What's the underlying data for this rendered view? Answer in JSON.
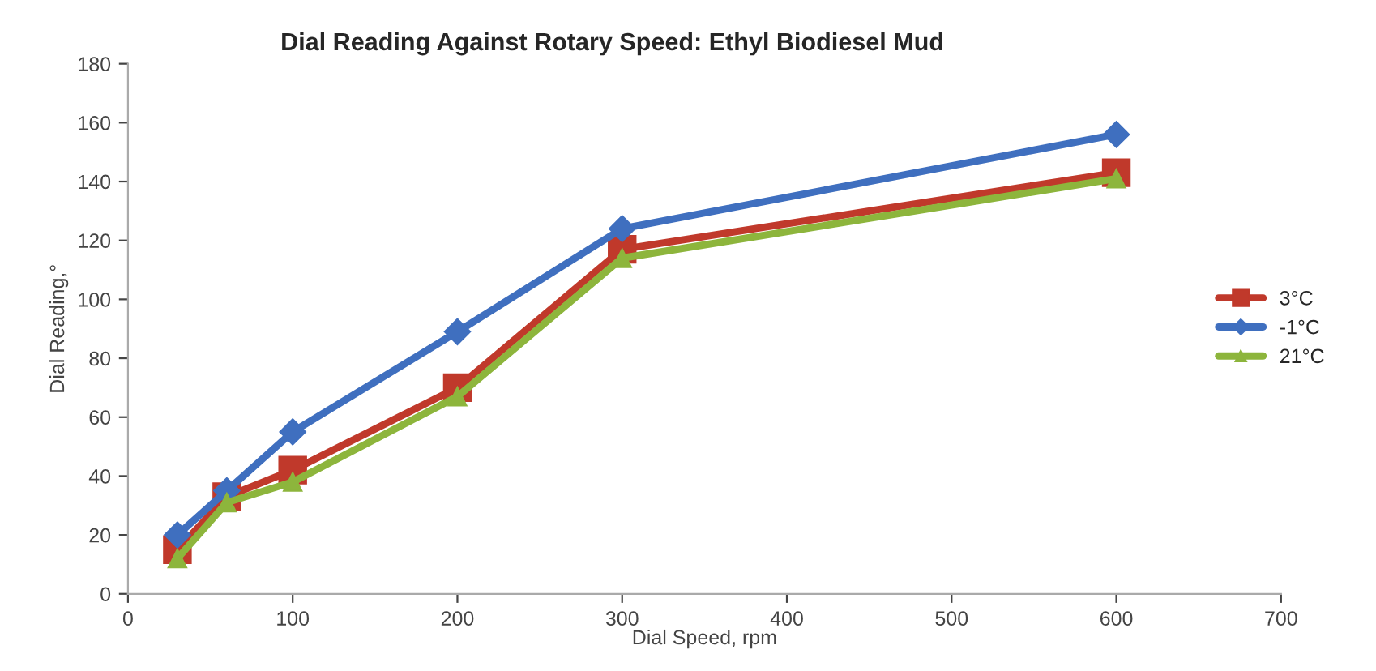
{
  "chart_data": {
    "type": "line",
    "title": "Dial Reading Against Rotary Speed: Ethyl Biodiesel Mud",
    "xlabel": "Dial Speed, rpm",
    "ylabel": "Dial Reading,°",
    "x": [
      30,
      60,
      100,
      200,
      300,
      600
    ],
    "series": [
      {
        "name": "3°C",
        "color": "#c0392b",
        "marker": "square",
        "values": [
          15,
          33,
          42,
          70,
          117,
          143
        ]
      },
      {
        "name": "-1°C",
        "color": "#3f6fbf",
        "marker": "diamond",
        "values": [
          20,
          35,
          55,
          89,
          124,
          156
        ]
      },
      {
        "name": "21°C",
        "color": "#8db53c",
        "marker": "triangle",
        "values": [
          12,
          31,
          38,
          67,
          114,
          141
        ]
      }
    ],
    "xlim": [
      0,
      700
    ],
    "xticks": [
      0,
      100,
      200,
      300,
      400,
      500,
      600,
      700
    ],
    "ylim": [
      0,
      180
    ],
    "yticks": [
      0,
      20,
      40,
      60,
      80,
      100,
      120,
      140,
      160,
      180
    ],
    "legend": "right",
    "line_style": "solid"
  }
}
